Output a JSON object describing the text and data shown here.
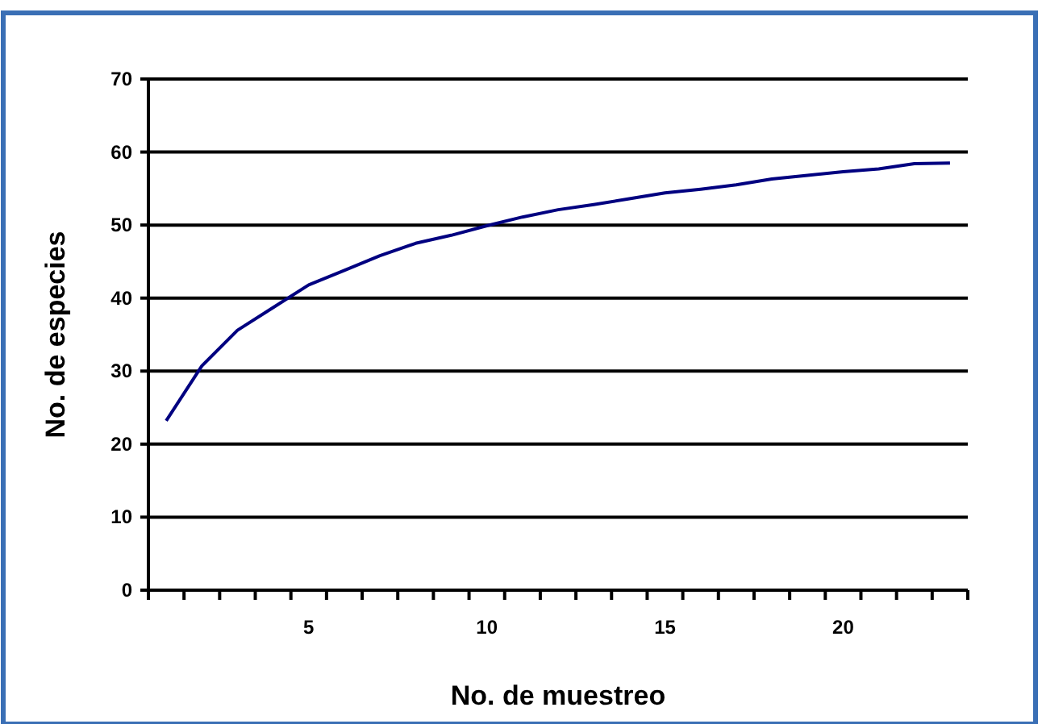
{
  "chart_data": {
    "type": "line",
    "xlabel": "No. de muestreo",
    "ylabel": "No. de especies",
    "categories": [
      null,
      null,
      null,
      null,
      "5",
      null,
      null,
      null,
      null,
      "10",
      null,
      null,
      null,
      null,
      "15",
      null,
      null,
      null,
      null,
      "20",
      null,
      null,
      null
    ],
    "series": [
      {
        "color": "#000080",
        "values": [
          23.2,
          30.7,
          35.6,
          38.7,
          41.8,
          43.8,
          45.8,
          47.5,
          48.6,
          49.9,
          51.1,
          52.1,
          52.8,
          53.6,
          54.4,
          54.9,
          55.5,
          56.3,
          56.8,
          57.3,
          57.7,
          58.4,
          58.5
        ]
      }
    ],
    "ylim": [
      0,
      70
    ],
    "yticks": [
      0,
      10,
      20,
      30,
      40,
      50,
      60,
      70
    ],
    "grid": "y",
    "marker": "none",
    "line_style": "solid"
  }
}
